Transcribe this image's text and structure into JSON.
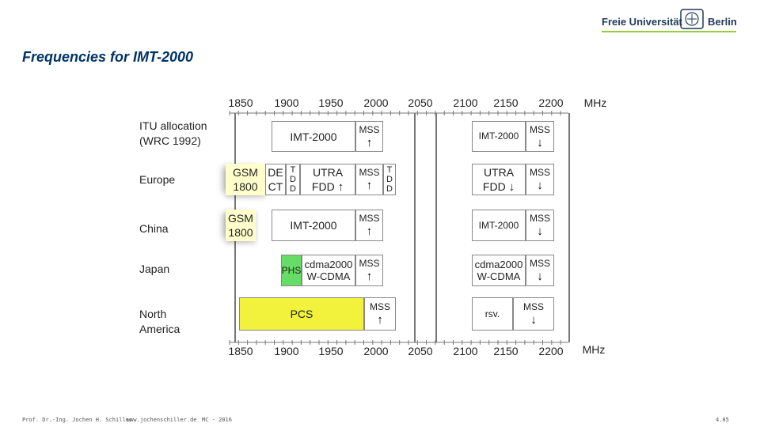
{
  "header": {
    "title": "Frequencies for IMT-2000",
    "logo_text": "Freie Universität",
    "logo_text_2": "Berlin"
  },
  "axis": {
    "unit": "MHz",
    "ticks": [
      "1850",
      "1900",
      "1950",
      "2000",
      "2050",
      "2100",
      "2150",
      "2200"
    ]
  },
  "rows": {
    "itu": "ITU allocation (WRC 1992)",
    "europe": "Europe",
    "china": "China",
    "japan": "Japan",
    "na": "North America"
  },
  "blocks": {
    "itu_imt_lo": "IMT-2000",
    "itu_mss_lo": "MSS",
    "itu_imt_hi": "IMT-2000",
    "itu_mss_hi": "MSS",
    "eu_gsm1": "GSM",
    "eu_gsm2": "1800",
    "eu_dect1": "DE",
    "eu_dect2": "CT",
    "eu_tdd_lo": "T D D",
    "eu_utra_lo1": "UTRA",
    "eu_utra_lo2": "FDD",
    "eu_mss_lo": "MSS",
    "eu_tdd_hi": "T D D",
    "eu_utra_hi1": "UTRA",
    "eu_utra_hi2": "FDD",
    "eu_mss_hi": "MSS",
    "cn_gsm1": "GSM",
    "cn_gsm2": "1800",
    "cn_imt_lo": "IMT-2000",
    "cn_mss_lo": "MSS",
    "cn_imt_hi": "IMT-2000",
    "cn_mss_hi": "MSS",
    "jp_phs": "PHS",
    "jp_cdma_lo1": "cdma2000",
    "jp_cdma_lo2": "W-CDMA",
    "jp_mss_lo": "MSS",
    "jp_cdma_hi1": "cdma2000",
    "jp_cdma_hi2": "W-CDMA",
    "jp_mss_hi": "MSS",
    "na_pcs": "PCS",
    "na_mss_lo": "MSS",
    "na_rsv": "rsv.",
    "na_mss_hi": "MSS"
  },
  "arrows": {
    "up": "↑",
    "down": "↓"
  },
  "footer": {
    "author": "Prof. Dr.-Ing. Jochen H. Schiller",
    "url": "www.jochenschiller.de",
    "course": "MC - 2016",
    "page": "4.85"
  }
}
